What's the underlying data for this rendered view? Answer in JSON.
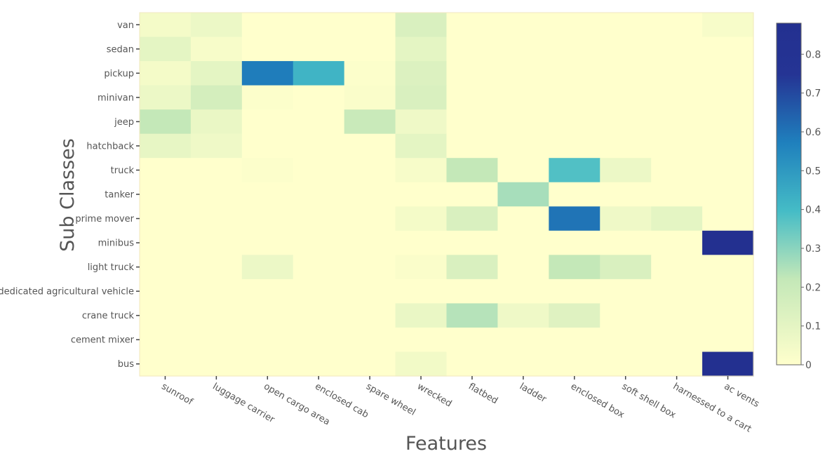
{
  "chart_data": {
    "type": "heatmap",
    "title": "",
    "xlabel": "Features",
    "ylabel": "Sub Classes",
    "x_categories": [
      "sunroof",
      "luggage carrier",
      "open cargo area",
      "enclosed cab",
      "spare wheel",
      "wrecked",
      "flatbed",
      "ladder",
      "enclosed box",
      "soft shell box",
      "harnessed to a cart",
      "ac vents"
    ],
    "y_categories": [
      "van",
      "sedan",
      "pickup",
      "minivan",
      "jeep",
      "hatchback",
      "truck",
      "tanker",
      "prime mover",
      "minibus",
      "light truck",
      "dedicated agricultural vehicle",
      "crane truck",
      "cement mixer",
      "bus"
    ],
    "values": [
      [
        0.04,
        0.07,
        0.0,
        0.0,
        0.0,
        0.14,
        0.0,
        0.0,
        0.0,
        0.0,
        0.0,
        0.03
      ],
      [
        0.1,
        0.03,
        0.0,
        0.0,
        0.0,
        0.1,
        0.0,
        0.0,
        0.0,
        0.0,
        0.0,
        0.0
      ],
      [
        0.04,
        0.1,
        0.58,
        0.42,
        0.01,
        0.13,
        0.0,
        0.0,
        0.0,
        0.0,
        0.0,
        0.0
      ],
      [
        0.07,
        0.16,
        0.01,
        0.0,
        0.02,
        0.14,
        0.0,
        0.0,
        0.0,
        0.0,
        0.0,
        0.0
      ],
      [
        0.22,
        0.08,
        0.0,
        0.0,
        0.2,
        0.06,
        0.0,
        0.0,
        0.0,
        0.0,
        0.0,
        0.0
      ],
      [
        0.09,
        0.06,
        0.0,
        0.0,
        0.0,
        0.1,
        0.0,
        0.0,
        0.0,
        0.0,
        0.0,
        0.0
      ],
      [
        0.0,
        0.0,
        0.01,
        0.0,
        0.0,
        0.03,
        0.22,
        0.0,
        0.38,
        0.07,
        0.0,
        0.0
      ],
      [
        0.0,
        0.0,
        0.0,
        0.0,
        0.0,
        0.0,
        0.0,
        0.26,
        0.0,
        0.0,
        0.0,
        0.0
      ],
      [
        0.0,
        0.0,
        0.0,
        0.0,
        0.0,
        0.04,
        0.14,
        0.0,
        0.6,
        0.06,
        0.1,
        0.0
      ],
      [
        0.0,
        0.0,
        0.0,
        0.0,
        0.0,
        0.0,
        0.0,
        0.0,
        0.0,
        0.0,
        0.0,
        0.88
      ],
      [
        0.0,
        0.0,
        0.07,
        0.0,
        0.0,
        0.02,
        0.14,
        0.0,
        0.22,
        0.14,
        0.0,
        0.0
      ],
      [
        0.0,
        0.0,
        0.0,
        0.0,
        0.0,
        0.0,
        0.0,
        0.0,
        0.0,
        0.0,
        0.0,
        0.0
      ],
      [
        0.0,
        0.0,
        0.0,
        0.0,
        0.0,
        0.08,
        0.24,
        0.06,
        0.12,
        0.0,
        0.0,
        0.0
      ],
      [
        0.0,
        0.0,
        0.0,
        0.0,
        0.0,
        0.0,
        0.0,
        0.0,
        0.0,
        0.0,
        0.0,
        0.0
      ],
      [
        0.0,
        0.0,
        0.0,
        0.0,
        0.0,
        0.05,
        0.0,
        0.0,
        0.0,
        0.0,
        0.0,
        0.88
      ]
    ],
    "colorscale": {
      "range": [
        0,
        0.88
      ],
      "ticks": [
        0,
        0.1,
        0.2,
        0.3,
        0.4,
        0.5,
        0.6,
        0.7,
        0.8
      ],
      "tick_labels": [
        "0",
        "0.1",
        "0.2",
        "0.3",
        "0.4",
        "0.5",
        "0.6",
        "0.7",
        "0.8"
      ],
      "colors": [
        {
          "stop": 0.0,
          "color": "#ffffcc"
        },
        {
          "stop": 0.25,
          "color": "#c4e8b8"
        },
        {
          "stop": 0.45,
          "color": "#45bcc6"
        },
        {
          "stop": 0.65,
          "color": "#1f80bd"
        },
        {
          "stop": 0.85,
          "color": "#253494"
        },
        {
          "stop": 1.0,
          "color": "#233090"
        }
      ]
    },
    "grid": false,
    "legend": "colorbar-right"
  }
}
